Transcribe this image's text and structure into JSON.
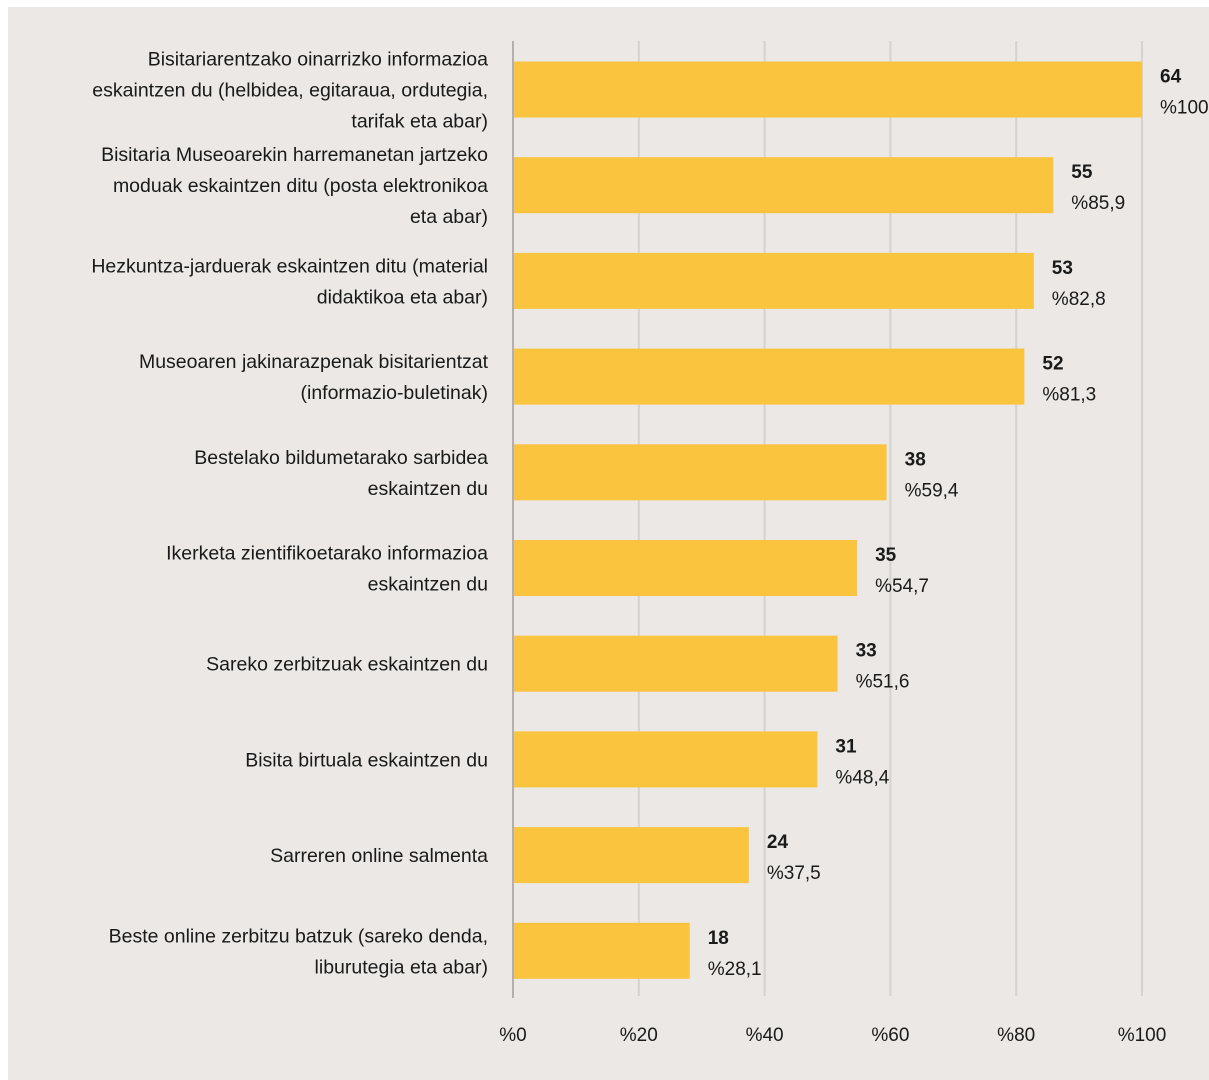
{
  "chart_data": {
    "type": "bar",
    "orientation": "horizontal",
    "categories": [
      [
        "Bisitariarentzako oinarrizko informazioa",
        "eskaintzen du (helbidea, egitaraua, ordutegia,",
        "tarifak eta abar)"
      ],
      [
        "Bisitaria Museoarekin harremanetan jartzeko",
        "moduak eskaintzen ditu (posta elektronikoa",
        "eta abar)"
      ],
      [
        "Hezkuntza-jarduerak eskaintzen ditu (material",
        "didaktikoa eta abar)"
      ],
      [
        "Museoaren jakinarazpenak bisitarientzat",
        "(informazio-buletinak)"
      ],
      [
        "Bestelako bildumetarako sarbidea",
        "eskaintzen du"
      ],
      [
        "Ikerketa zientifikoetarako informazioa",
        "eskaintzen du"
      ],
      [
        "Sareko zerbitzuak eskaintzen du"
      ],
      [
        "Bisita birtuala eskaintzen du"
      ],
      [
        "Sarreren online salmenta"
      ],
      [
        "Beste online zerbitzu batzuk (sareko denda,",
        "liburutegia eta abar)"
      ]
    ],
    "counts": [
      "64",
      "55",
      "53",
      "52",
      "38",
      "35",
      "33",
      "31",
      "24",
      "18"
    ],
    "values": [
      100.0,
      85.9,
      82.8,
      81.3,
      59.4,
      54.7,
      51.6,
      48.4,
      37.5,
      28.1
    ],
    "value_labels": [
      "%100,0",
      "%85,9",
      "%82,8",
      "%81,3",
      "%59,4",
      "%54,7",
      "%51,6",
      "%48,4",
      "%37,5",
      "%28,1"
    ],
    "x_ticks": [
      "%0",
      "%20",
      "%40",
      "%60",
      "%80",
      "%100"
    ],
    "xlim": [
      0,
      100
    ],
    "grid": true,
    "colors": {
      "bar": "#fbc43f",
      "grid": "#d6d2ce",
      "axis": "#b5b0ab",
      "background": "#ebe8e5"
    }
  }
}
